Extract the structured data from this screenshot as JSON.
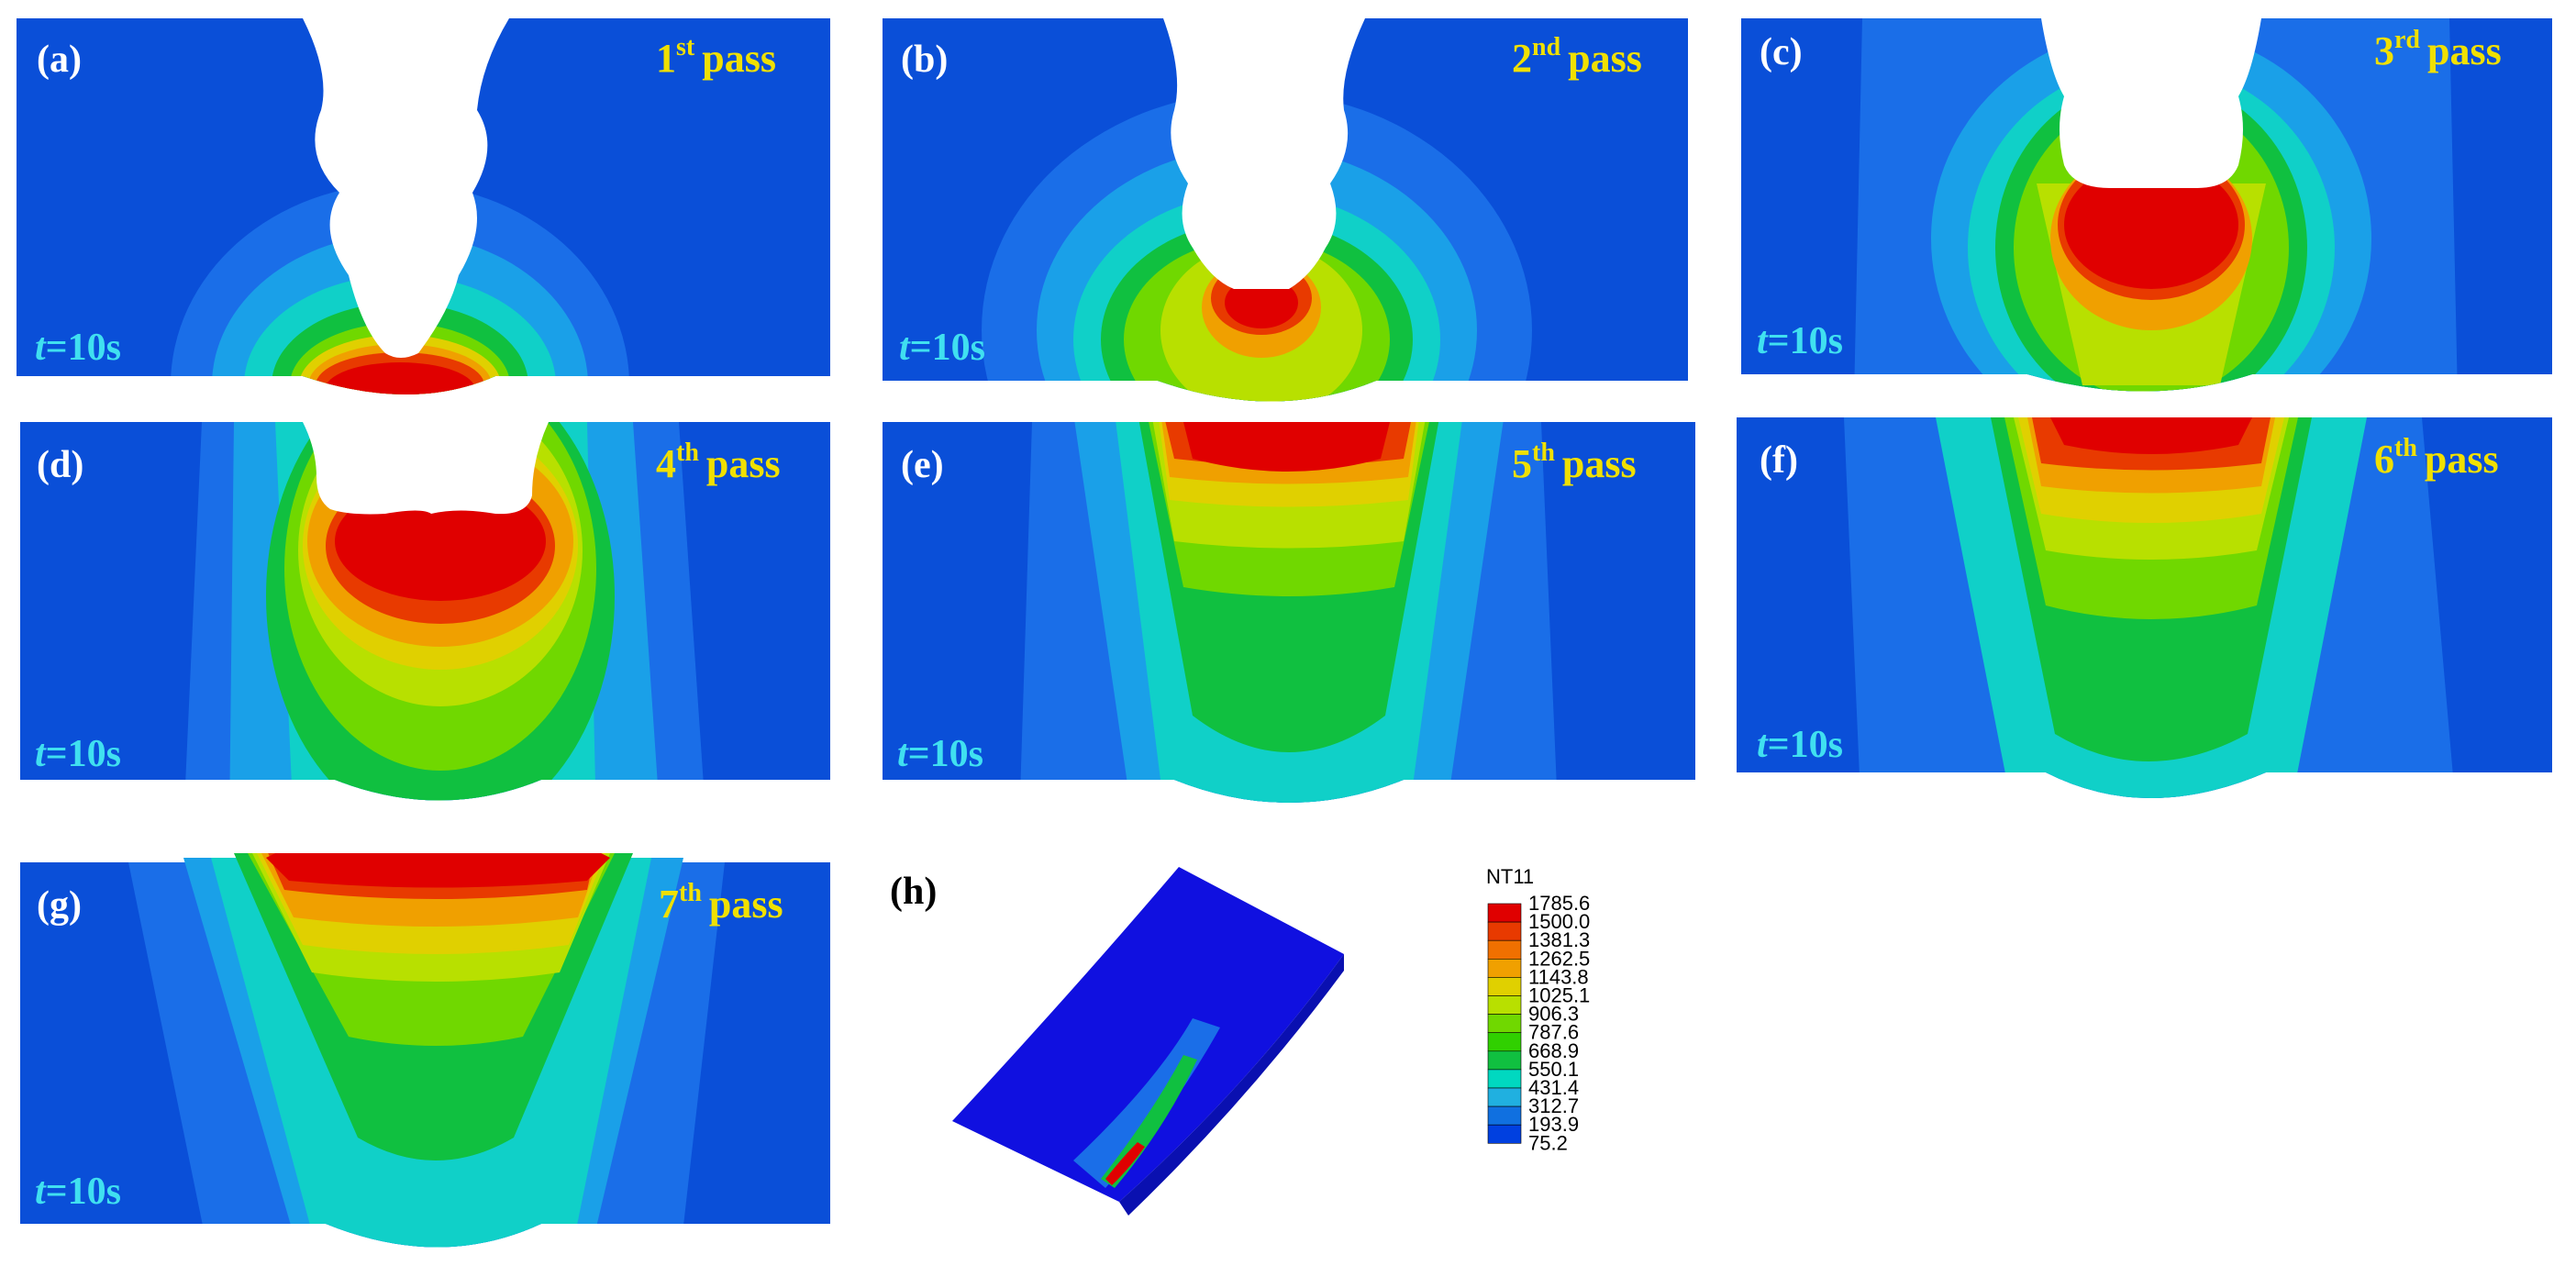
{
  "panels": [
    {
      "id": "a",
      "label": "(a)",
      "pass_num": "1",
      "pass_sup": "st",
      "pass_word": "pass",
      "time_var": "t",
      "time_val": "=10s"
    },
    {
      "id": "b",
      "label": "(b)",
      "pass_num": "2",
      "pass_sup": "nd",
      "pass_word": "pass",
      "time_var": "t",
      "time_val": "=10s"
    },
    {
      "id": "c",
      "label": "(c)",
      "pass_num": "3",
      "pass_sup": "rd",
      "pass_word": "pass",
      "time_var": "t",
      "time_val": "=10s"
    },
    {
      "id": "d",
      "label": "(d)",
      "pass_num": "4",
      "pass_sup": "th",
      "pass_word": "pass",
      "time_var": "t",
      "time_val": "=10s"
    },
    {
      "id": "e",
      "label": "(e)",
      "pass_num": "5",
      "pass_sup": "th",
      "pass_word": "pass",
      "time_var": "t",
      "time_val": "=10s"
    },
    {
      "id": "f",
      "label": "(f)",
      "pass_num": "6",
      "pass_sup": "th",
      "pass_word": "pass",
      "time_var": "t",
      "time_val": "=10s"
    },
    {
      "id": "g",
      "label": "(g)",
      "pass_num": "7",
      "pass_sup": "th",
      "pass_word": "pass",
      "time_var": "t",
      "time_val": "=10s"
    }
  ],
  "panel_h_label": "(h)",
  "legend": {
    "title": "NT11",
    "values": [
      "1785.6",
      "1500.0",
      "1381.3",
      "1262.5",
      "1143.8",
      "1025.1",
      "906.3",
      "787.6",
      "668.9",
      "550.1",
      "431.4",
      "312.7",
      "193.9",
      "75.2"
    ],
    "colors": [
      "#e00000",
      "#e83a00",
      "#f07000",
      "#f0a000",
      "#e0d000",
      "#b8e000",
      "#70d800",
      "#30d000",
      "#10c040",
      "#00d8c0",
      "#20b0e0",
      "#1070e0",
      "#0040e0"
    ]
  },
  "colors": {
    "base": "#0a4fd8",
    "deep_blue": "#0a1ee0"
  }
}
